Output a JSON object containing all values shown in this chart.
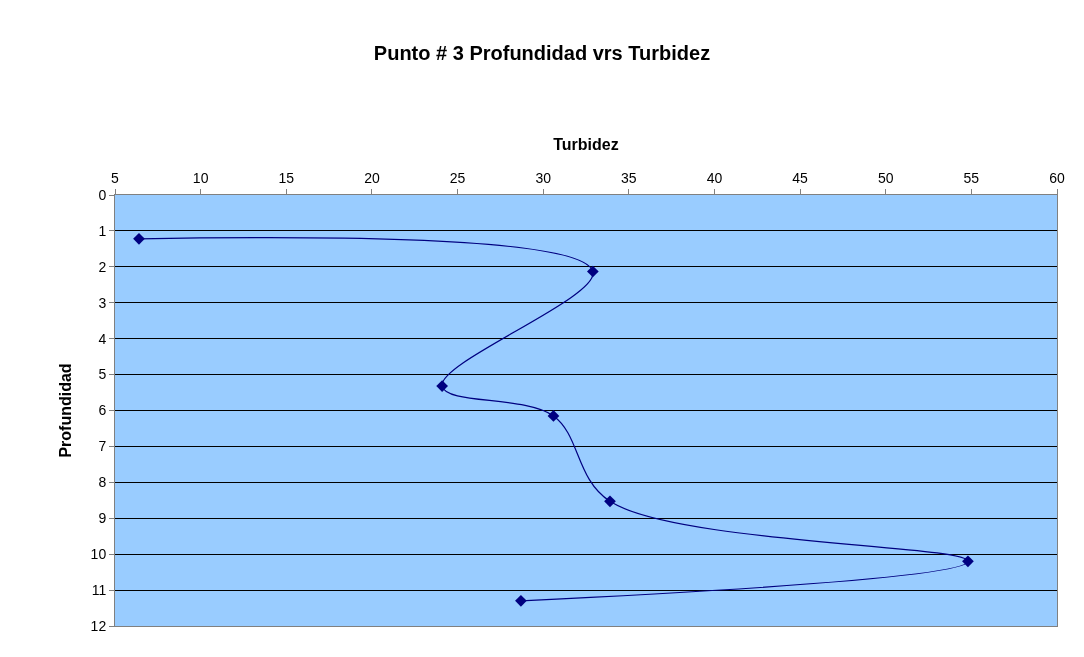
{
  "chart_data": {
    "type": "line",
    "title": "Punto # 3 Profundidad vrs Turbidez",
    "xlabel": "Turbidez",
    "ylabel": "Profundidad",
    "x": [
      6.4,
      32.9,
      24.1,
      30.6,
      33.9,
      54.8,
      28.7
    ],
    "series": [
      {
        "color": "#000080",
        "values": [
          1.22,
          2.13,
          5.32,
          6.15,
          8.53,
          10.2,
          11.3
        ]
      }
    ],
    "xlim": [
      5,
      60
    ],
    "xticks": [
      5,
      10,
      15,
      20,
      25,
      30,
      35,
      40,
      45,
      50,
      55,
      60
    ],
    "ylim": [
      12,
      0
    ],
    "yticks": [
      0,
      1,
      2,
      3,
      4,
      5,
      6,
      7,
      8,
      9,
      10,
      11,
      12
    ],
    "grid": "y",
    "marker": "diamond",
    "line_style": "solid"
  }
}
